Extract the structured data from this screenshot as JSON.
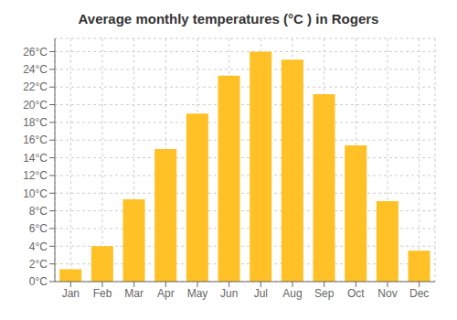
{
  "chart_data": {
    "type": "bar",
    "title": "Average monthly temperatures (°C ) in Rogers",
    "categories": [
      "Jan",
      "Feb",
      "Mar",
      "Apr",
      "May",
      "Jun",
      "Jul",
      "Aug",
      "Sep",
      "Oct",
      "Nov",
      "Dec"
    ],
    "values": [
      1.4,
      4.0,
      9.3,
      15.0,
      19.0,
      23.3,
      26.0,
      25.1,
      21.2,
      15.4,
      9.1,
      3.5
    ],
    "color": "#FFC125",
    "ylim": [
      0,
      27.5
    ],
    "yticks": [
      {
        "value": 0,
        "label": "0°C"
      },
      {
        "value": 2,
        "label": "2°C"
      },
      {
        "value": 4,
        "label": "4°C"
      },
      {
        "value": 6,
        "label": "6°C"
      },
      {
        "value": 8,
        "label": "8°C"
      },
      {
        "value": 10,
        "label": "10°C"
      },
      {
        "value": 12,
        "label": "12°C"
      },
      {
        "value": 14,
        "label": "14°C"
      },
      {
        "value": 16,
        "label": "16°C"
      },
      {
        "value": 18,
        "label": "18°C"
      },
      {
        "value": 20,
        "label": "20°C"
      },
      {
        "value": 22,
        "label": "22°C"
      },
      {
        "value": 24,
        "label": "24°C"
      },
      {
        "value": 26,
        "label": "26°C"
      }
    ],
    "grid": true
  }
}
